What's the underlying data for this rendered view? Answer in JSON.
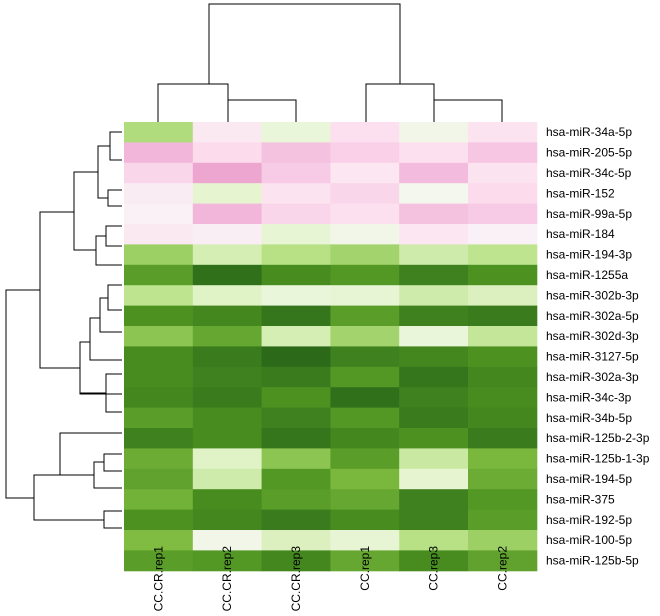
{
  "chart_data": {
    "type": "heatmap",
    "title": "",
    "columns": [
      "CC.CR.rep1",
      "CC.CR.rep2",
      "CC.CR.rep3",
      "CC.rep1",
      "CC.rep3",
      "CC.rep2"
    ],
    "rows": [
      "hsa-miR-34a-5p",
      "hsa-miR-205-5p",
      "hsa-miR-34c-5p",
      "hsa-miR-152",
      "hsa-miR-99a-5p",
      "hsa-miR-184",
      "hsa-miR-194-3p",
      "hsa-miR-1255a",
      "hsa-miR-302b-3p",
      "hsa-miR-302a-5p",
      "hsa-miR-302d-3p",
      "hsa-miR-3127-5p",
      "hsa-miR-302a-3p",
      "hsa-miR-34c-3p",
      "hsa-miR-34b-5p",
      "hsa-miR-125b-2-3p",
      "hsa-miR-125b-1-3p",
      "hsa-miR-194-5p",
      "hsa-miR-375",
      "hsa-miR-192-5p",
      "hsa-miR-100-5p",
      "hsa-miR-125b-5p"
    ],
    "color_scale": {
      "low_to_high": [
        "#276419",
        "#4d9221",
        "#7fbc41",
        "#b8e186",
        "#e6f5d0",
        "#f7f7f7",
        "#fde0ef",
        "#f1b6da",
        "#de77ae",
        "#c51b7d",
        "#8e0152"
      ],
      "scale_range": [
        -4,
        4
      ]
    },
    "values": [
      [
        -1.7,
        0.5,
        -0.6,
        0.8,
        -0.3,
        0.7
      ],
      [
        1.6,
        0.9,
        1.4,
        1.1,
        0.8,
        1.3
      ],
      [
        1.0,
        1.8,
        1.2,
        0.6,
        1.5,
        0.7
      ],
      [
        0.4,
        -0.8,
        0.7,
        1.0,
        -0.2,
        0.9
      ],
      [
        0.2,
        1.6,
        1.0,
        0.8,
        1.4,
        1.2
      ],
      [
        0.5,
        0.3,
        -0.7,
        -0.3,
        0.6,
        0.2
      ],
      [
        -2.0,
        -1.1,
        -1.6,
        -1.9,
        -1.2,
        -1.5
      ],
      [
        -3.0,
        -3.8,
        -3.3,
        -3.1,
        -3.5,
        -3.2
      ],
      [
        -1.5,
        -0.9,
        -0.6,
        -0.7,
        -1.2,
        -1.0
      ],
      [
        -3.2,
        -3.4,
        -3.7,
        -3.0,
        -3.5,
        -3.6
      ],
      [
        -2.2,
        -2.8,
        -1.1,
        -1.9,
        -0.6,
        -1.4
      ],
      [
        -3.3,
        -3.6,
        -3.9,
        -3.5,
        -3.4,
        -3.2
      ],
      [
        -3.3,
        -3.5,
        -3.6,
        -3.1,
        -3.7,
        -3.4
      ],
      [
        -3.4,
        -3.6,
        -3.2,
        -3.8,
        -3.5,
        -3.3
      ],
      [
        -3.0,
        -3.3,
        -3.5,
        -3.1,
        -3.6,
        -3.4
      ],
      [
        -3.5,
        -3.3,
        -3.7,
        -3.4,
        -3.2,
        -3.6
      ],
      [
        -2.7,
        -0.9,
        -2.2,
        -3.0,
        -1.3,
        -2.5
      ],
      [
        -2.9,
        -1.2,
        -3.1,
        -2.5,
        -0.8,
        -2.7
      ],
      [
        -2.6,
        -3.3,
        -3.0,
        -2.8,
        -3.5,
        -3.1
      ],
      [
        -3.2,
        -3.4,
        -3.6,
        -3.3,
        -3.5,
        -3.0
      ],
      [
        -2.4,
        -0.3,
        -1.0,
        -0.7,
        -1.6,
        -2.0
      ],
      [
        -3.0,
        -3.1,
        -3.4,
        -2.8,
        -3.3,
        -2.9
      ]
    ],
    "grid": false,
    "legend": "none",
    "row_dendrogram": true,
    "column_dendrogram": true
  }
}
